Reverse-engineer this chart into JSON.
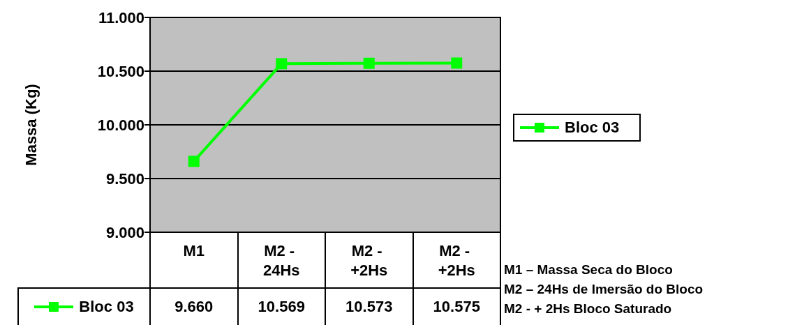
{
  "chart_data": {
    "type": "line",
    "ylabel": "Massa (Kg)",
    "categories": [
      "M1",
      "M2 - 24Hs",
      "M2 - +2Hs",
      "M2 - +2Hs"
    ],
    "series": [
      {
        "name": "Bloc 03",
        "color": "#00ff00",
        "values": [
          9.66,
          10.569,
          10.573,
          10.575
        ],
        "value_labels": [
          "9.660",
          "10.569",
          "10.573",
          "10.575"
        ]
      }
    ],
    "ylim": [
      9,
      11
    ],
    "yticks": [
      {
        "value": 9,
        "label": "9.000"
      },
      {
        "value": 9.5,
        "label": "9.500"
      },
      {
        "value": 10,
        "label": "10.000"
      },
      {
        "value": 10.5,
        "label": "10.500"
      },
      {
        "value": 11,
        "label": "11.000"
      }
    ],
    "grid": "y",
    "legend": "right",
    "marker": "square",
    "line_style": "solid",
    "annotations": [
      "M1 – Massa Seca do Bloco",
      "M2 – 24Hs de Imersão do Bloco",
      "M2 - + 2Hs Bloco Saturado"
    ]
  }
}
